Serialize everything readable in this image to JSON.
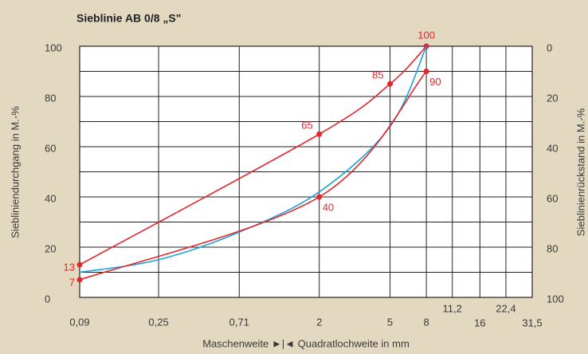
{
  "chart_data": {
    "type": "line",
    "title": "Sieblinie AB 0/8 „S\"",
    "y_label": "Sieblinien­durchgang in M.-%",
    "y2_label": "Sieblinienrückstand in M.-%",
    "x_label": "Maschenweite ►|◄ Quadratlochweite in mm",
    "xlog": true,
    "xlim": [
      0.09,
      31.5
    ],
    "xticks": [
      {
        "value": 0.09,
        "label": "0,09"
      },
      {
        "value": 0.25,
        "label": "0,25"
      },
      {
        "value": 0.71,
        "label": "0,71"
      },
      2,
      5,
      8,
      {
        "value": 11.2,
        "label": "11,2"
      },
      16,
      {
        "value": 22.4,
        "label": "22,4"
      },
      {
        "value": 31.5,
        "label": "31,5"
      }
    ],
    "ylim": [
      0,
      100
    ],
    "yticks": [
      0,
      20,
      40,
      60,
      80,
      100
    ],
    "minor_yticks": [
      10,
      30,
      50,
      70,
      90
    ],
    "y2lim": [
      100,
      0
    ],
    "y2ticks": [
      0,
      20,
      40,
      60,
      80,
      100
    ],
    "grid": true,
    "series": [
      {
        "color": "#e3262d",
        "markers": true,
        "x": [
          0.09,
          2,
          5,
          8
        ],
        "values": [
          13,
          65,
          85,
          100
        ]
      },
      {
        "color": "#1aa3da",
        "markers": false,
        "x": [
          0.09,
          0.25,
          0.71,
          2,
          5,
          8
        ],
        "values": [
          10,
          15,
          26,
          42,
          68,
          100
        ]
      },
      {
        "color": "#e3262d",
        "markers": true,
        "x": [
          0.09,
          2,
          8
        ],
        "values": [
          7,
          40,
          90
        ]
      }
    ]
  }
}
